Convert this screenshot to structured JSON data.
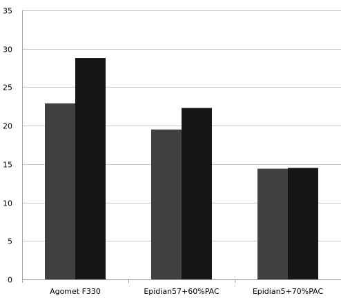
{
  "chart_data": {
    "type": "bar",
    "categories": [
      "Agomet F330",
      "Epidian57+60%PAC",
      "Epidian5+70%PAC"
    ],
    "series": [
      {
        "color": "#404040",
        "values": [
          22.9,
          19.5,
          14.4
        ]
      },
      {
        "color": "#161616",
        "values": [
          28.8,
          22.3,
          14.5
        ]
      }
    ],
    "ylim": [
      0,
      35
    ],
    "yticks": [
      0,
      5,
      10,
      15,
      20,
      25,
      30,
      35
    ],
    "grid": true,
    "legend": "none"
  },
  "colors": {
    "grid": "#c8c8c8",
    "axis": "#a0a0a0",
    "background": "#ffffff"
  }
}
